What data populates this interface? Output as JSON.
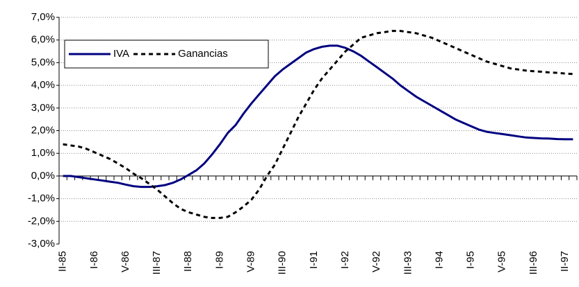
{
  "chart_data": {
    "type": "line",
    "categories": [
      "II-85",
      null,
      null,
      null,
      "I-86",
      null,
      null,
      null,
      "V-86",
      null,
      null,
      null,
      "III-87",
      null,
      null,
      null,
      "II-88",
      null,
      null,
      null,
      "I-89",
      null,
      null,
      null,
      "V-89",
      null,
      null,
      null,
      "III-90",
      null,
      null,
      null,
      "I-91",
      null,
      null,
      null,
      "I-92",
      null,
      null,
      null,
      "V-92",
      null,
      null,
      null,
      "III-93",
      null,
      null,
      null,
      "I-94",
      null,
      null,
      null,
      "I-95",
      null,
      null,
      null,
      "V-95",
      null,
      null,
      null,
      "III-96",
      null,
      null,
      null,
      "II-97",
      null
    ],
    "series": [
      {
        "name": "IVA",
        "color": "#000080",
        "dash": false,
        "values": [
          0.0,
          0.0,
          -0.05,
          -0.1,
          -0.15,
          -0.2,
          -0.25,
          -0.3,
          -0.38,
          -0.45,
          -0.48,
          -0.48,
          -0.45,
          -0.4,
          -0.3,
          -0.15,
          0.05,
          0.25,
          0.55,
          0.95,
          1.4,
          1.9,
          2.25,
          2.75,
          3.2,
          3.6,
          4.0,
          4.4,
          4.7,
          4.95,
          5.2,
          5.45,
          5.6,
          5.7,
          5.75,
          5.75,
          5.65,
          5.5,
          5.3,
          5.05,
          4.8,
          4.55,
          4.3,
          4.0,
          3.75,
          3.5,
          3.3,
          3.1,
          2.9,
          2.7,
          2.5,
          2.35,
          2.2,
          2.05,
          1.95,
          1.9,
          1.85,
          1.8,
          1.75,
          1.7,
          1.68,
          1.66,
          1.65,
          1.63,
          1.62,
          1.62
        ]
      },
      {
        "name": "Ganancias",
        "color": "#000000",
        "dash": true,
        "values": [
          1.4,
          1.35,
          1.3,
          1.2,
          1.05,
          0.9,
          0.75,
          0.55,
          0.35,
          0.1,
          -0.1,
          -0.35,
          -0.6,
          -0.9,
          -1.2,
          -1.45,
          -1.6,
          -1.7,
          -1.8,
          -1.85,
          -1.85,
          -1.8,
          -1.6,
          -1.35,
          -1.05,
          -0.6,
          0.0,
          0.5,
          1.2,
          1.9,
          2.6,
          3.2,
          3.8,
          4.3,
          4.7,
          5.1,
          5.5,
          5.8,
          6.1,
          6.2,
          6.3,
          6.35,
          6.4,
          6.4,
          6.35,
          6.3,
          6.2,
          6.1,
          5.95,
          5.8,
          5.65,
          5.5,
          5.35,
          5.2,
          5.05,
          4.95,
          4.85,
          4.75,
          4.7,
          4.65,
          4.62,
          4.6,
          4.57,
          4.55,
          4.52,
          4.5
        ]
      }
    ],
    "ylim": [
      -3,
      7
    ],
    "yticks": [
      {
        "value": -3,
        "label": "-3,0%"
      },
      {
        "value": -2,
        "label": "-2,0%"
      },
      {
        "value": -1,
        "label": "-1,0%"
      },
      {
        "value": 0,
        "label": "0,0%"
      },
      {
        "value": 1,
        "label": "1,0%"
      },
      {
        "value": 2,
        "label": "2,0%"
      },
      {
        "value": 3,
        "label": "3,0%"
      },
      {
        "value": 4,
        "label": "4,0%"
      },
      {
        "value": 5,
        "label": "5,0%"
      },
      {
        "value": 6,
        "label": "6,0%"
      },
      {
        "value": 7,
        "label": "7,0%"
      }
    ],
    "grid": true,
    "legend": "top-left"
  }
}
